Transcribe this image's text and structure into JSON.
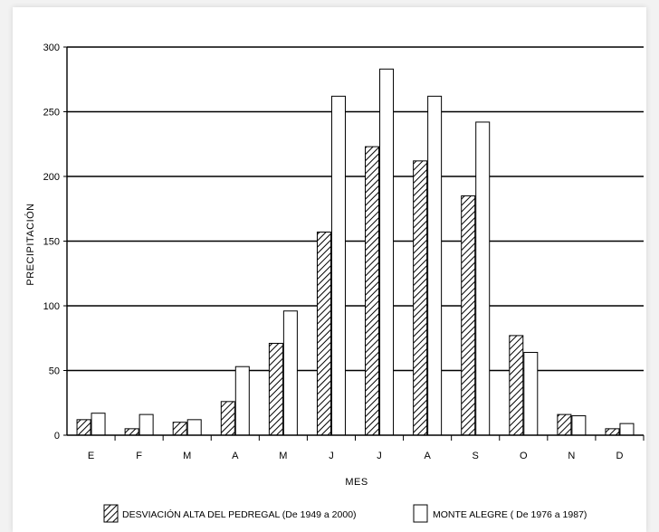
{
  "chart_data": {
    "type": "bar",
    "categories": [
      "E",
      "F",
      "M",
      "A",
      "M",
      "J",
      "J",
      "A",
      "S",
      "O",
      "N",
      "D"
    ],
    "series": [
      {
        "name": "DESVIACIÓN ALTA DEL PEDREGAL (De 1949 a 2000)",
        "pattern": "hatched",
        "values": [
          12,
          5,
          10,
          26,
          71,
          157,
          223,
          212,
          185,
          77,
          16,
          5
        ]
      },
      {
        "name": "MONTE ALEGRE ( De 1976 a 1987)",
        "pattern": "white",
        "values": [
          17,
          16,
          12,
          53,
          96,
          262,
          283,
          262,
          242,
          64,
          15,
          9
        ]
      }
    ],
    "ylim": [
      0,
      300
    ],
    "yticks": [
      "0",
      "50",
      "100",
      "150",
      "200",
      "250",
      "300"
    ],
    "xlabel": "MES",
    "ylabel": "PRECIPITACIÓN",
    "grid": "horizontal",
    "legend_position": "bottom",
    "colors": {
      "bar_stroke": "#000000",
      "hatch": "#000000",
      "bar_fill": "#ffffff"
    }
  }
}
